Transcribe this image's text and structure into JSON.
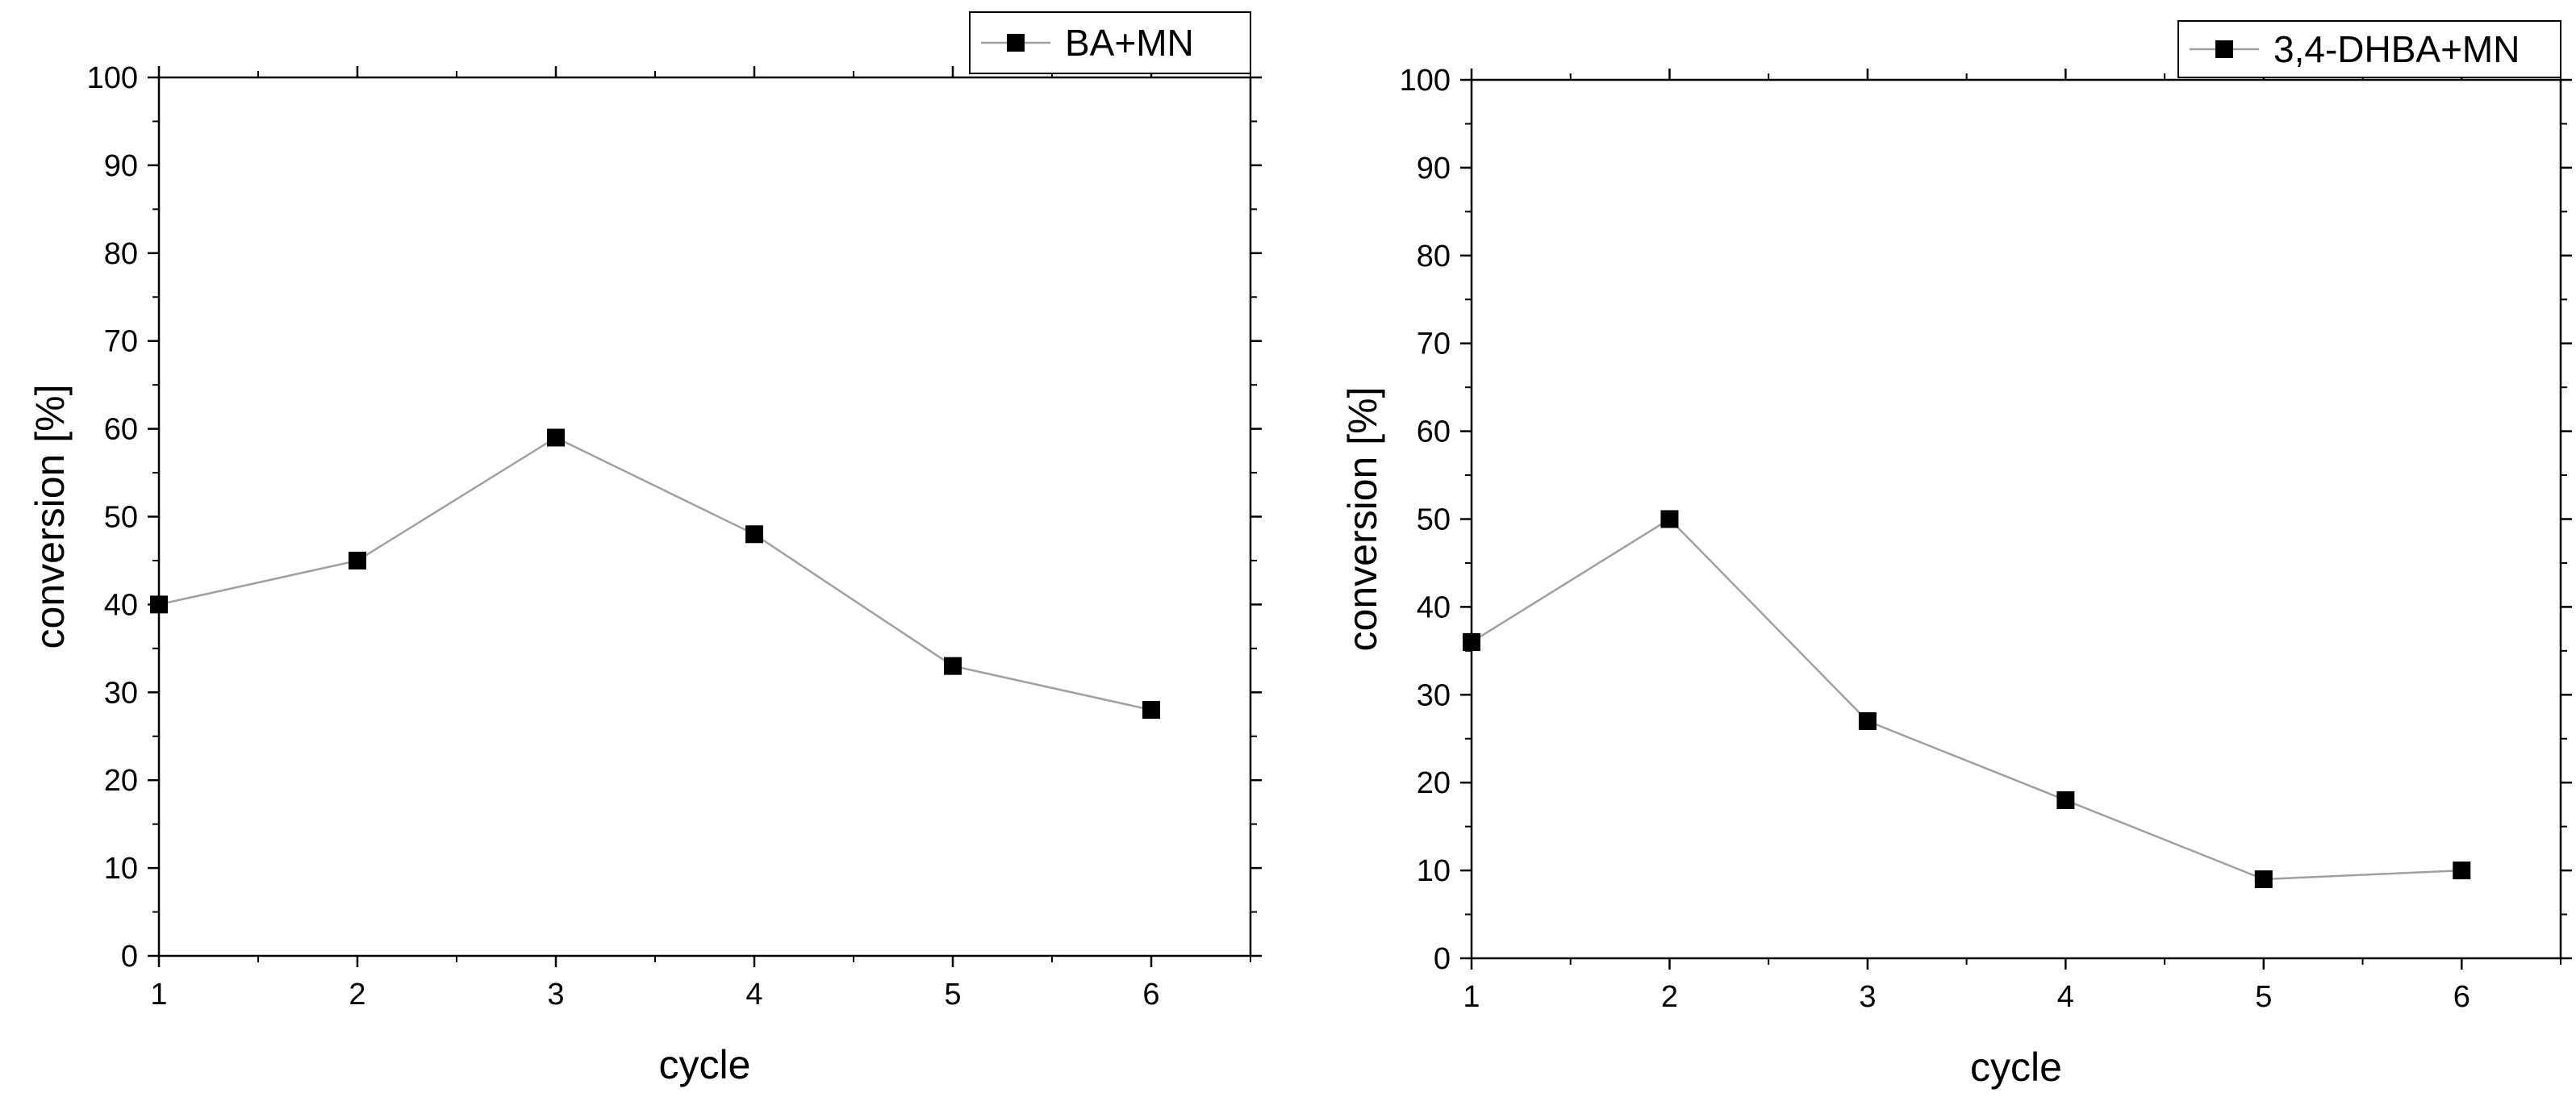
{
  "chart_data": [
    {
      "type": "line",
      "xlabel": "cycle",
      "ylabel": "conversion [%]",
      "xlim": [
        1,
        6.5
      ],
      "ylim": [
        0,
        100
      ],
      "xticks": [
        1,
        2,
        3,
        4,
        5,
        6
      ],
      "yticks": [
        0,
        10,
        20,
        30,
        40,
        50,
        60,
        70,
        80,
        90,
        100
      ],
      "grid": false,
      "legend_position": "top-right",
      "marker": "square",
      "colors": {
        "line": "#a0a0a0",
        "marker": "#000000"
      },
      "series": [
        {
          "name": "BA+MN",
          "x": [
            1,
            2,
            3,
            4,
            5,
            6
          ],
          "values": [
            40,
            45,
            59,
            48,
            33,
            28
          ]
        }
      ]
    },
    {
      "type": "line",
      "xlabel": "cycle",
      "ylabel": "conversion [%]",
      "xlim": [
        1,
        6.5
      ],
      "ylim": [
        0,
        100
      ],
      "xticks": [
        1,
        2,
        3,
        4,
        5,
        6
      ],
      "yticks": [
        0,
        10,
        20,
        30,
        40,
        50,
        60,
        70,
        80,
        90,
        100
      ],
      "grid": false,
      "legend_position": "top-right",
      "marker": "square",
      "colors": {
        "line": "#a0a0a0",
        "marker": "#000000"
      },
      "series": [
        {
          "name": "3,4-DHBA+MN",
          "x": [
            1,
            2,
            3,
            4,
            5,
            6
          ],
          "values": [
            36,
            50,
            27,
            18,
            9,
            10
          ]
        }
      ]
    }
  ]
}
